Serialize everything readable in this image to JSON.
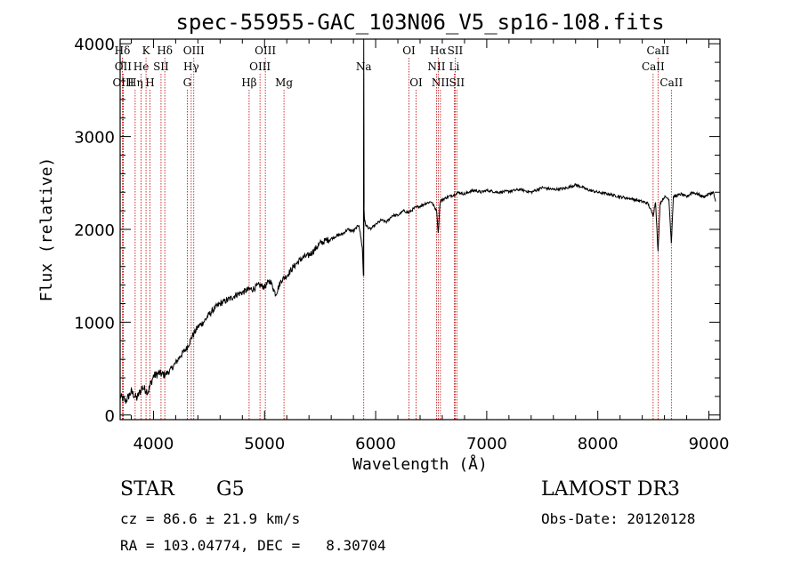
{
  "chart_data": {
    "type": "line",
    "title": "spec-55955-GAC_103N06_V5_sp16-108.fits",
    "xlabel": "Wavelength (Å)",
    "ylabel": "Flux (relative)",
    "xlim": [
      3700,
      9100
    ],
    "ylim": [
      -50,
      4050
    ],
    "xticks": [
      4000,
      5000,
      6000,
      7000,
      8000,
      9000
    ],
    "yticks": [
      0,
      1000,
      2000,
      3000,
      4000
    ],
    "series": [
      {
        "name": "flux",
        "x": [
          3700,
          3750,
          3800,
          3850,
          3900,
          3950,
          4000,
          4050,
          4100,
          4150,
          4200,
          4250,
          4300,
          4350,
          4400,
          4450,
          4500,
          4550,
          4600,
          4650,
          4700,
          4750,
          4800,
          4850,
          4900,
          4950,
          5000,
          5050,
          5100,
          5150,
          5200,
          5250,
          5300,
          5350,
          5400,
          5450,
          5500,
          5550,
          5600,
          5650,
          5700,
          5750,
          5800,
          5850,
          5880,
          5890,
          5896,
          5900,
          5910,
          5950,
          6000,
          6050,
          6100,
          6150,
          6200,
          6250,
          6300,
          6350,
          6400,
          6450,
          6500,
          6550,
          6563,
          6580,
          6600,
          6650,
          6700,
          6750,
          6800,
          6850,
          6900,
          6950,
          7000,
          7100,
          7200,
          7300,
          7400,
          7500,
          7600,
          7700,
          7800,
          7850,
          7900,
          8000,
          8100,
          8200,
          8300,
          8400,
          8450,
          8498,
          8520,
          8542,
          8560,
          8600,
          8640,
          8662,
          8680,
          8750,
          8800,
          8850,
          8900,
          8950,
          9000,
          9040,
          9060
        ],
        "y": [
          200,
          150,
          250,
          180,
          300,
          250,
          420,
          450,
          430,
          480,
          560,
          650,
          720,
          850,
          950,
          1000,
          1080,
          1150,
          1200,
          1230,
          1260,
          1300,
          1320,
          1350,
          1360,
          1400,
          1380,
          1450,
          1300,
          1450,
          1500,
          1580,
          1650,
          1700,
          1720,
          1780,
          1850,
          1880,
          1900,
          1930,
          1950,
          2000,
          1980,
          2050,
          1800,
          1500,
          2300,
          2100,
          2050,
          2000,
          2050,
          2100,
          2080,
          2150,
          2150,
          2200,
          2180,
          2230,
          2250,
          2280,
          2300,
          2200,
          1950,
          2300,
          2320,
          2350,
          2370,
          2400,
          2380,
          2410,
          2420,
          2400,
          2420,
          2400,
          2410,
          2430,
          2400,
          2450,
          2430,
          2440,
          2480,
          2460,
          2430,
          2400,
          2380,
          2350,
          2330,
          2300,
          2280,
          2150,
          2300,
          1750,
          2280,
          2350,
          2330,
          1850,
          2350,
          2380,
          2350,
          2400,
          2380,
          2350,
          2380,
          2400,
          2300
        ]
      }
    ],
    "line_markers": [
      {
        "label": "Hδ",
        "wl": 3720,
        "row": 1
      },
      {
        "label": "OII",
        "wl": 3727,
        "row": 2
      },
      {
        "label": "OIII",
        "wl": 3728,
        "row": 3
      },
      {
        "label": "He",
        "wl": 3889,
        "row": 2
      },
      {
        "label": "Hη",
        "wl": 3835,
        "row": 3
      },
      {
        "label": "K",
        "wl": 3933,
        "row": 1
      },
      {
        "label": "H",
        "wl": 3968,
        "row": 3
      },
      {
        "label": "SII",
        "wl": 4068,
        "row": 2
      },
      {
        "label": "Hδ",
        "wl": 4102,
        "row": 1
      },
      {
        "label": "OIII",
        "wl": 4363,
        "row": 1
      },
      {
        "label": "Hγ",
        "wl": 4340,
        "row": 2
      },
      {
        "label": "G",
        "wl": 4304,
        "row": 3
      },
      {
        "label": "Hβ",
        "wl": 4861,
        "row": 3
      },
      {
        "label": "OIII",
        "wl": 5007,
        "row": 1
      },
      {
        "label": "OIII",
        "wl": 4959,
        "row": 2
      },
      {
        "label": "Mg",
        "wl": 5175,
        "row": 3
      },
      {
        "label": "Na",
        "wl": 5893,
        "row": 2
      },
      {
        "label": "OI",
        "wl": 6300,
        "row": 1
      },
      {
        "label": "OI",
        "wl": 6364,
        "row": 3
      },
      {
        "label": "Hα",
        "wl": 6563,
        "row": 1
      },
      {
        "label": "NII",
        "wl": 6548,
        "row": 2
      },
      {
        "label": "NII",
        "wl": 6583,
        "row": 3
      },
      {
        "label": "SII",
        "wl": 6716,
        "row": 1
      },
      {
        "label": "Li",
        "wl": 6708,
        "row": 2
      },
      {
        "label": "SII",
        "wl": 6731,
        "row": 3
      },
      {
        "label": "CaII",
        "wl": 8542,
        "row": 1
      },
      {
        "label": "CaII",
        "wl": 8498,
        "row": 2
      },
      {
        "label": "CaII",
        "wl": 8662,
        "row": 3
      }
    ]
  },
  "info": {
    "object_class": "STAR",
    "subclass": "G5",
    "survey": "LAMOST DR3",
    "cz": "cz = 86.6 ± 21.9 km/s",
    "obs_date": "Obs-Date: 20120128",
    "coords": "RA = 103.04774, DEC =   8.30704"
  }
}
